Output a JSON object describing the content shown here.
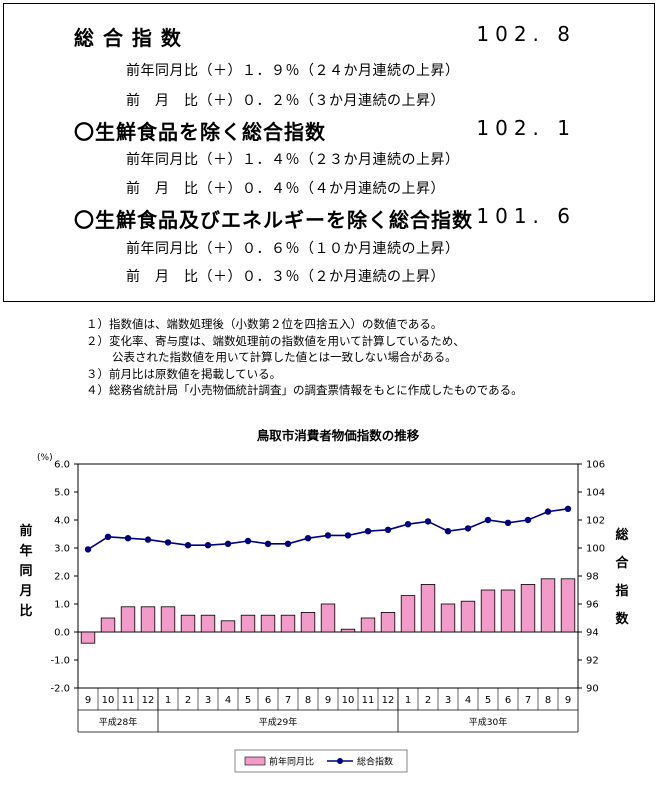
{
  "summary": {
    "total": {
      "label": "総 合 指 数",
      "value": "102. 8"
    },
    "total_yoy": "前年同月比（＋）１．９％（２４か月連続の上昇）",
    "total_mom": "前　月　比（＋）０．２％（３か月連続の上昇）",
    "core": {
      "label": "〇生鮮食品を除く総合指数",
      "value": "102. 1"
    },
    "core_yoy": "前年同月比（＋）１．４％（２３か月連続の上昇）",
    "core_mom": "前　月　比（＋）０．４％（４か月連続の上昇）",
    "corecore": {
      "label": "〇生鮮食品及びエネルギーを除く総合指数",
      "value": "101. 6"
    },
    "corecore_yoy": "前年同月比（＋）０．６％（１０か月連続の上昇）",
    "corecore_mom": "前　月　比（＋）０．３％（２か月連続の上昇）"
  },
  "notes": [
    "１）指数値は、端数処理後（小数第２位を四捨五入）の数値である。",
    "２）変化率、寄与度は、端数処理前の指数値を用いて計算しているため、",
    "公表された指数値を用いて計算した値とは一致しない場合がある。",
    "３）前月比は原数値を掲載している。",
    "４）総務省統計局「小売物価統計調査」の調査票情報をもとに作成したものである。"
  ],
  "chart_data": {
    "type": "bar",
    "title": "鳥取市消費者物価指数の推移",
    "left_axis_unit": "(%)",
    "ylabel_left": "前年同月比",
    "ylabel_right": "総合指数",
    "ylim_left": [
      -2.0,
      6.0
    ],
    "yticks_left": [
      "-2.0",
      "-1.0",
      "0.0",
      "1.0",
      "2.0",
      "3.0",
      "4.0",
      "5.0",
      "6.0"
    ],
    "ylim_right": [
      90,
      106
    ],
    "yticks_right": [
      "90",
      "92",
      "94",
      "96",
      "98",
      "100",
      "102",
      "104",
      "106"
    ],
    "categories": [
      "9",
      "10",
      "11",
      "12",
      "1",
      "2",
      "3",
      "4",
      "5",
      "6",
      "7",
      "8",
      "9",
      "10",
      "11",
      "12",
      "1",
      "2",
      "3",
      "4",
      "5",
      "6",
      "7",
      "8",
      "9"
    ],
    "year_groups": [
      {
        "label": "平成28年",
        "count": 4
      },
      {
        "label": "平成29年",
        "count": 12
      },
      {
        "label": "平成30年",
        "count": 9
      }
    ],
    "series": [
      {
        "name": "前年同月比",
        "kind": "bar",
        "axis": "left",
        "color": "#f29bc8",
        "values": [
          -0.4,
          0.5,
          0.9,
          0.9,
          0.9,
          0.6,
          0.6,
          0.4,
          0.6,
          0.6,
          0.6,
          0.7,
          1.0,
          0.1,
          0.5,
          0.7,
          1.3,
          1.7,
          1.0,
          1.1,
          1.5,
          1.5,
          1.7,
          1.9,
          1.9
        ]
      },
      {
        "name": "総合指数",
        "kind": "line",
        "axis": "right",
        "color": "#00007f",
        "values": [
          99.9,
          100.8,
          100.7,
          100.6,
          100.4,
          100.2,
          100.2,
          100.3,
          100.5,
          100.3,
          100.3,
          100.7,
          100.9,
          100.9,
          101.2,
          101.3,
          101.7,
          101.9,
          101.2,
          101.4,
          102.0,
          101.8,
          102.0,
          102.6,
          102.8
        ]
      }
    ],
    "grid": false,
    "legend": "bottom"
  }
}
